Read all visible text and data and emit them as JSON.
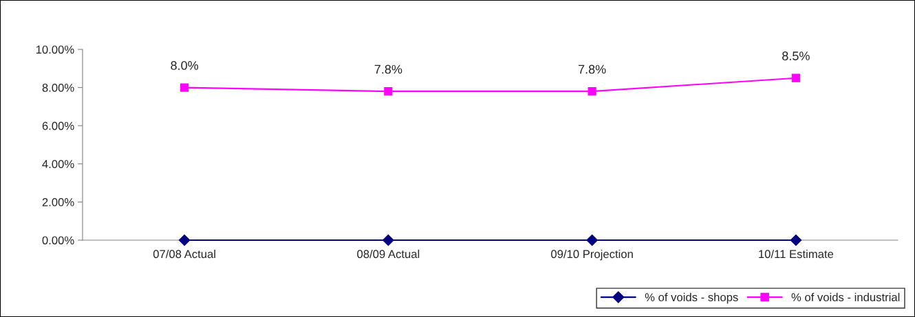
{
  "chart_data": {
    "type": "line",
    "categories": [
      "07/08 Actual",
      "08/09 Actual",
      "09/10 Projection",
      "10/11 Estimate"
    ],
    "series": [
      {
        "name": "% of voids - shops",
        "color": "#000080",
        "marker": "diamond",
        "values": [
          0,
          0,
          0,
          0
        ]
      },
      {
        "name": "% of voids - industrial",
        "color": "#ff00ff",
        "marker": "square",
        "values": [
          8.0,
          7.8,
          7.8,
          8.5
        ],
        "value_labels": [
          "8.0%",
          "7.8%",
          "7.8%",
          "8.5%"
        ]
      }
    ],
    "ylim": [
      0,
      10
    ],
    "yticks": [
      {
        "value": 0,
        "label": "0.00%"
      },
      {
        "value": 2,
        "label": "2.00%"
      },
      {
        "value": 4,
        "label": "4.00%"
      },
      {
        "value": 6,
        "label": "6.00%"
      },
      {
        "value": 8,
        "label": "8.00%"
      },
      {
        "value": 10,
        "label": "10.00%"
      }
    ],
    "grid": false,
    "legend": "bottom right",
    "line_style": "solid"
  }
}
